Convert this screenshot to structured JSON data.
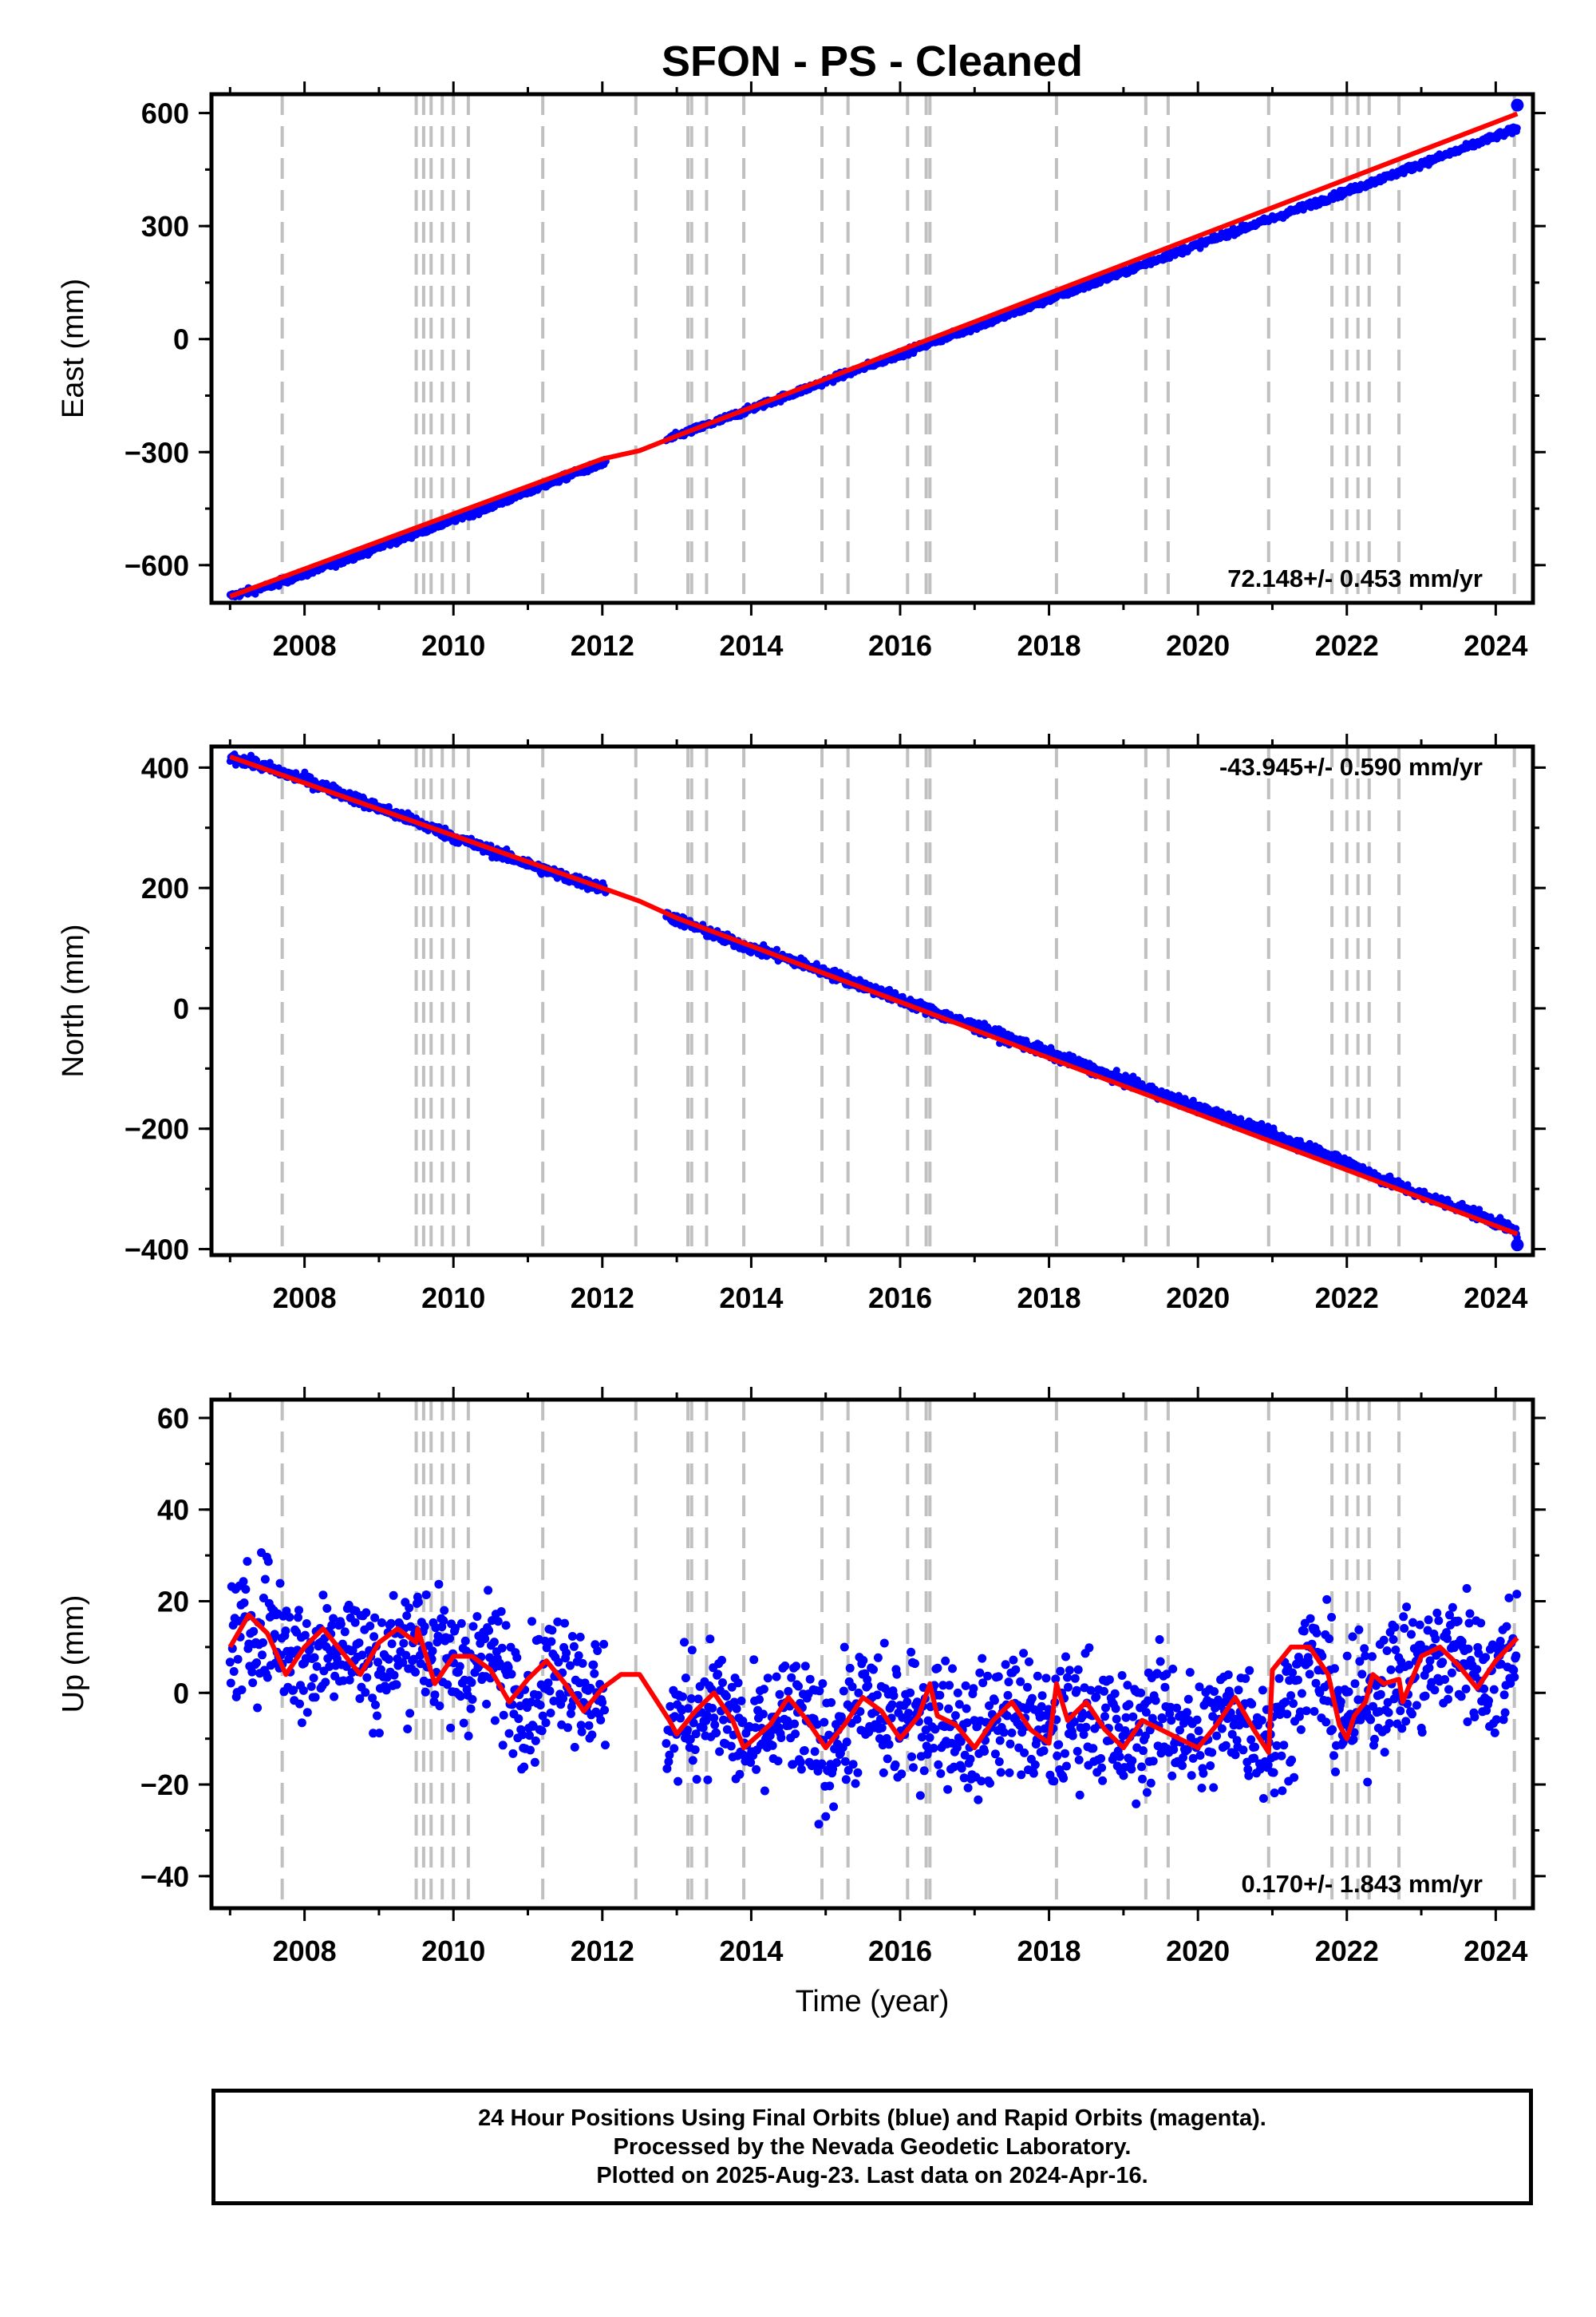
{
  "title": "SFON  - PS - Cleaned",
  "colors": {
    "final_orbits": "#0000ff",
    "rapid_orbits": "#ff00ff",
    "model_fit": "#ff0000",
    "equipment_change_lines": "#c0c0c0",
    "axes": "#000000"
  },
  "chart_data": [
    {
      "type": "scatter",
      "panel": "east",
      "ylabel": "East (mm)",
      "xlabel": "",
      "xlim": [
        2006.75,
        2024.5
      ],
      "ylim": [
        -700,
        650
      ],
      "yticks": [
        -600,
        -300,
        0,
        300,
        600
      ],
      "xticks": [
        2008,
        2010,
        2012,
        2014,
        2016,
        2018,
        2020,
        2022,
        2024
      ],
      "rate_label": "72.148+/- 0.453 mm/yr",
      "rate_label_position": "bottom-right",
      "series": [
        {
          "role": "observations",
          "x": [
            2007.0,
            2007.5,
            2008.0,
            2008.5,
            2009.0,
            2009.5,
            2010.0,
            2010.5,
            2011.0,
            2011.5,
            2012.0,
            2013.0,
            2013.5,
            2014.0,
            2014.5,
            2015.0,
            2015.5,
            2016.0,
            2016.5,
            2017.0,
            2017.5,
            2018.0,
            2018.5,
            2019.0,
            2019.5,
            2020.0,
            2020.5,
            2021.0,
            2021.5,
            2022.0,
            2022.5,
            2023.0,
            2023.5,
            2024.0,
            2024.29
          ],
          "y": [
            -683,
            -657,
            -623,
            -589,
            -551,
            -515,
            -479,
            -444,
            -405,
            -366,
            -330,
            -257,
            -222,
            -185,
            -149,
            -112,
            -76,
            -40,
            -3,
            32,
            68,
            106,
            141,
            178,
            215,
            250,
            287,
            320,
            356,
            392,
            428,
            465,
            501,
            538,
            558
          ]
        },
        {
          "role": "fit",
          "x": [
            2007.0,
            2012.0,
            2012.5,
            2013.0,
            2024.29
          ],
          "y": [
            -683,
            -318,
            -296,
            -257,
            598
          ]
        }
      ],
      "last_point": {
        "x": 2024.29,
        "y": 621
      }
    },
    {
      "type": "scatter",
      "panel": "north",
      "ylabel": "North (mm)",
      "xlabel": "",
      "xlim": [
        2006.75,
        2024.5
      ],
      "ylim": [
        -410,
        435
      ],
      "yticks": [
        -400,
        -200,
        0,
        200,
        400
      ],
      "xticks": [
        2008,
        2010,
        2012,
        2014,
        2016,
        2018,
        2020,
        2022,
        2024
      ],
      "rate_label": "-43.945+/- 0.590 mm/yr",
      "rate_label_position": "top-right",
      "series": [
        {
          "role": "observations",
          "x": [
            2007.0,
            2007.5,
            2008.0,
            2008.5,
            2009.0,
            2009.5,
            2010.0,
            2010.5,
            2011.0,
            2011.5,
            2012.0,
            2013.0,
            2013.5,
            2014.0,
            2014.5,
            2015.0,
            2015.5,
            2016.0,
            2016.5,
            2017.0,
            2017.5,
            2018.0,
            2018.5,
            2019.0,
            2019.5,
            2020.0,
            2020.5,
            2021.0,
            2021.5,
            2022.0,
            2022.5,
            2023.0,
            2023.5,
            2024.0,
            2024.29
          ],
          "y": [
            418,
            400,
            380,
            357,
            333,
            310,
            285,
            262,
            240,
            218,
            200,
            148,
            122,
            100,
            82,
            60,
            38,
            15,
            -8,
            -30,
            -52,
            -75,
            -97,
            -120,
            -143,
            -165,
            -187,
            -210,
            -232,
            -256,
            -285,
            -310,
            -330,
            -355,
            -372
          ]
        },
        {
          "role": "fit",
          "x": [
            2007.0,
            2012.0,
            2012.5,
            2013.0,
            2024.29
          ],
          "y": [
            418,
            200,
            178,
            150,
            -375
          ]
        }
      ],
      "last_point": {
        "x": 2024.29,
        "y": -393
      }
    },
    {
      "type": "scatter",
      "panel": "up",
      "ylabel": "Up (mm)",
      "xlabel": "Time (year)",
      "xlim": [
        2006.75,
        2024.5
      ],
      "ylim": [
        -47,
        64
      ],
      "yticks": [
        -40,
        -20,
        0,
        20,
        40,
        60
      ],
      "xticks": [
        2008,
        2010,
        2012,
        2014,
        2016,
        2018,
        2020,
        2022,
        2024
      ],
      "rate_label": "0.170+/- 1.843 mm/yr",
      "rate_label_position": "bottom-right",
      "series": [
        {
          "role": "observations",
          "x": [
            2007.0,
            2007.5,
            2008.0,
            2008.5,
            2009.0,
            2009.5,
            2010.0,
            2010.5,
            2011.0,
            2011.5,
            2012.0,
            2012.9,
            2013.5,
            2014.0,
            2014.5,
            2015.0,
            2015.5,
            2016.0,
            2016.5,
            2017.0,
            2017.5,
            2018.0,
            2018.5,
            2019.0,
            2019.5,
            2020.0,
            2020.5,
            2021.0,
            2021.5,
            2022.0,
            2022.5,
            2023.0,
            2023.5,
            2024.0,
            2024.29
          ],
          "y": [
            10,
            16,
            6,
            13,
            5,
            13,
            5,
            8,
            -2,
            7,
            -3,
            -7,
            -2,
            -12,
            -5,
            -12,
            -3,
            -7,
            -4,
            -10,
            -3,
            -10,
            -3,
            -11,
            -4,
            -11,
            -3,
            -11,
            8,
            -6,
            3,
            5,
            10,
            2,
            12
          ]
        },
        {
          "role": "fit",
          "x": [
            2007.0,
            2007.25,
            2007.5,
            2007.75,
            2008.0,
            2008.25,
            2008.5,
            2008.75,
            2009.0,
            2009.25,
            2009.5,
            2009.52,
            2009.75,
            2010.0,
            2010.25,
            2010.5,
            2010.75,
            2011.0,
            2011.25,
            2011.5,
            2011.75,
            2012.0,
            2012.25,
            2012.5,
            2012.9,
            2013.0,
            2013.25,
            2013.5,
            2013.75,
            2013.9,
            2014.25,
            2014.5,
            2014.75,
            2015.0,
            2015.25,
            2015.5,
            2015.75,
            2016.0,
            2016.25,
            2016.4,
            2016.5,
            2016.75,
            2017.0,
            2017.25,
            2017.5,
            2017.75,
            2018.0,
            2018.1,
            2018.25,
            2018.5,
            2018.75,
            2019.0,
            2019.25,
            2019.5,
            2019.75,
            2020.0,
            2020.25,
            2020.5,
            2020.75,
            2020.95,
            2021.0,
            2021.25,
            2021.5,
            2021.75,
            2021.9,
            2022.0,
            2022.1,
            2022.25,
            2022.35,
            2022.5,
            2022.7,
            2022.75,
            2023.0,
            2023.25,
            2023.5,
            2023.75,
            2024.0,
            2024.29
          ],
          "y": [
            10,
            17,
            13,
            4,
            10,
            14,
            9,
            4,
            11,
            14,
            11,
            14,
            2,
            8,
            8,
            5,
            -2,
            3,
            7,
            2,
            -4,
            1,
            4,
            4,
            -6,
            -9,
            -4,
            0,
            -6,
            -12,
            -7,
            -1,
            -6,
            -12,
            -7,
            -1,
            -4,
            -10,
            -5,
            2,
            -5,
            -7,
            -12,
            -6,
            -2,
            -8,
            -11,
            2,
            -6,
            -2,
            -8,
            -12,
            -6,
            -8,
            -10,
            -12,
            -7,
            -1,
            -8,
            -13,
            5,
            10,
            10,
            4,
            -7,
            -10,
            -5,
            -2,
            4,
            2,
            3,
            -2,
            8,
            10,
            6,
            1,
            7,
            12
          ]
        }
      ]
    }
  ],
  "event_lines": [
    2007.7,
    2009.5,
    2009.6,
    2009.7,
    2009.85,
    2010.0,
    2010.2,
    2011.2,
    2012.45,
    2013.15,
    2013.2,
    2013.4,
    2013.9,
    2014.95,
    2015.3,
    2016.1,
    2016.35,
    2016.4,
    2018.1,
    2019.3,
    2019.6,
    2020.95,
    2021.8,
    2022.0,
    2022.15,
    2022.3,
    2022.7,
    2024.25
  ],
  "footer": {
    "line1": "24 Hour Positions Using Final Orbits (blue) and Rapid Orbits (magenta).",
    "line2": "Processed by the Nevada Geodetic Laboratory.",
    "line3": "Plotted on 2025-Aug-23. Last data on 2024-Apr-16."
  }
}
